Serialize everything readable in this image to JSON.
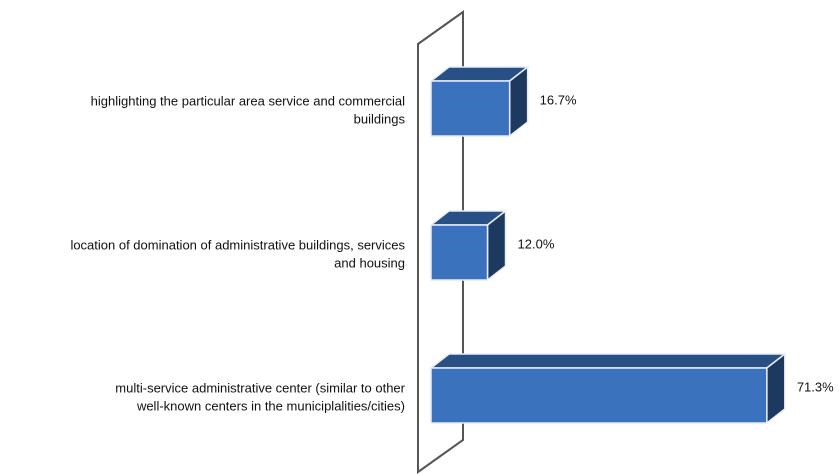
{
  "chart_data": {
    "type": "bar3d-horizontal",
    "categories": [
      [
        "highlighting the particular area service and commercial",
        "buildings"
      ],
      [
        "location of domination of administrative buildings, services",
        "and housing"
      ],
      [
        "multi-service administrative center (similar to other",
        "well-known centers in the municiplalities/cities)"
      ]
    ],
    "values": [
      16.7,
      12.0,
      71.3
    ],
    "value_labels": [
      "16.7%",
      "12.0%",
      "71.3%"
    ],
    "color": "#3a72bd"
  }
}
